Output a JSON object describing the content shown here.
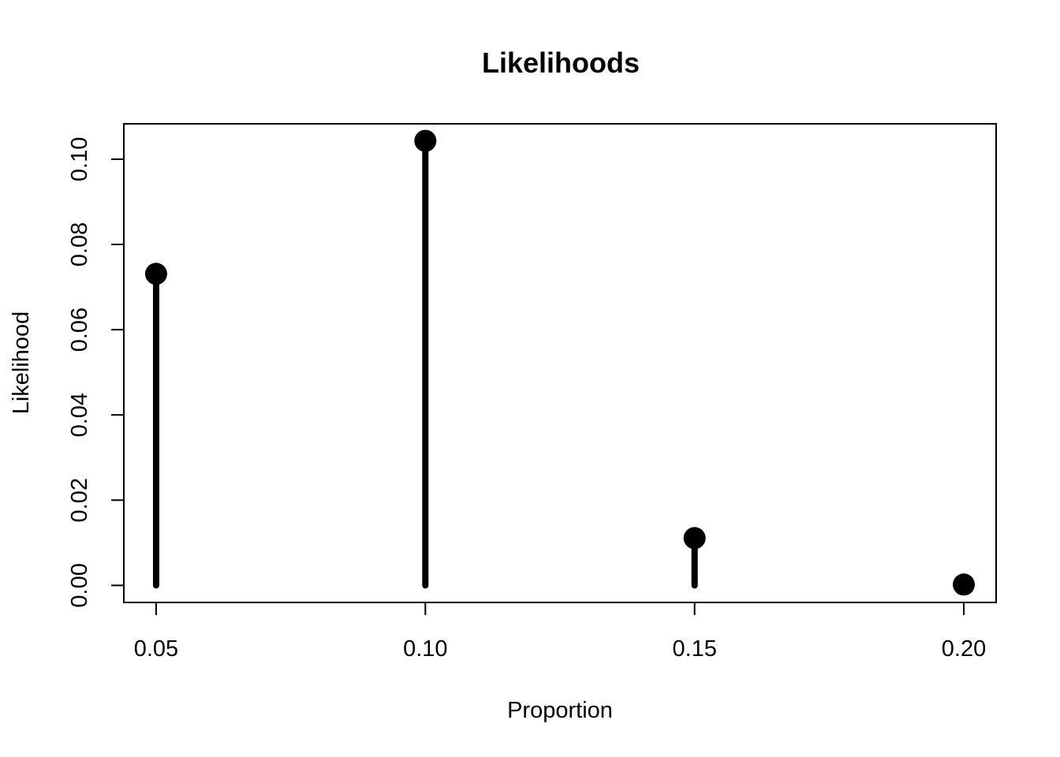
{
  "chart_data": {
    "type": "lollipop",
    "title": "Likelihoods",
    "xlabel": "Proportion",
    "ylabel": "Likelihood",
    "x": [
      0.05,
      0.1,
      0.15,
      0.2
    ],
    "values": [
      0.0731,
      0.1043,
      0.0111,
      0.0002
    ],
    "xticks": [
      "0.05",
      "0.10",
      "0.15",
      "0.20"
    ],
    "xtick_values": [
      0.05,
      0.1,
      0.15,
      0.2
    ],
    "yticks": [
      "0.00",
      "0.02",
      "0.04",
      "0.06",
      "0.08",
      "0.10"
    ],
    "ytick_values": [
      0,
      0.02,
      0.04,
      0.06,
      0.08,
      0.1
    ],
    "xlim": [
      0.044,
      0.206
    ],
    "ylim": [
      -0.004,
      0.1083
    ],
    "grid": false,
    "legend": "none",
    "color": "#000000"
  }
}
